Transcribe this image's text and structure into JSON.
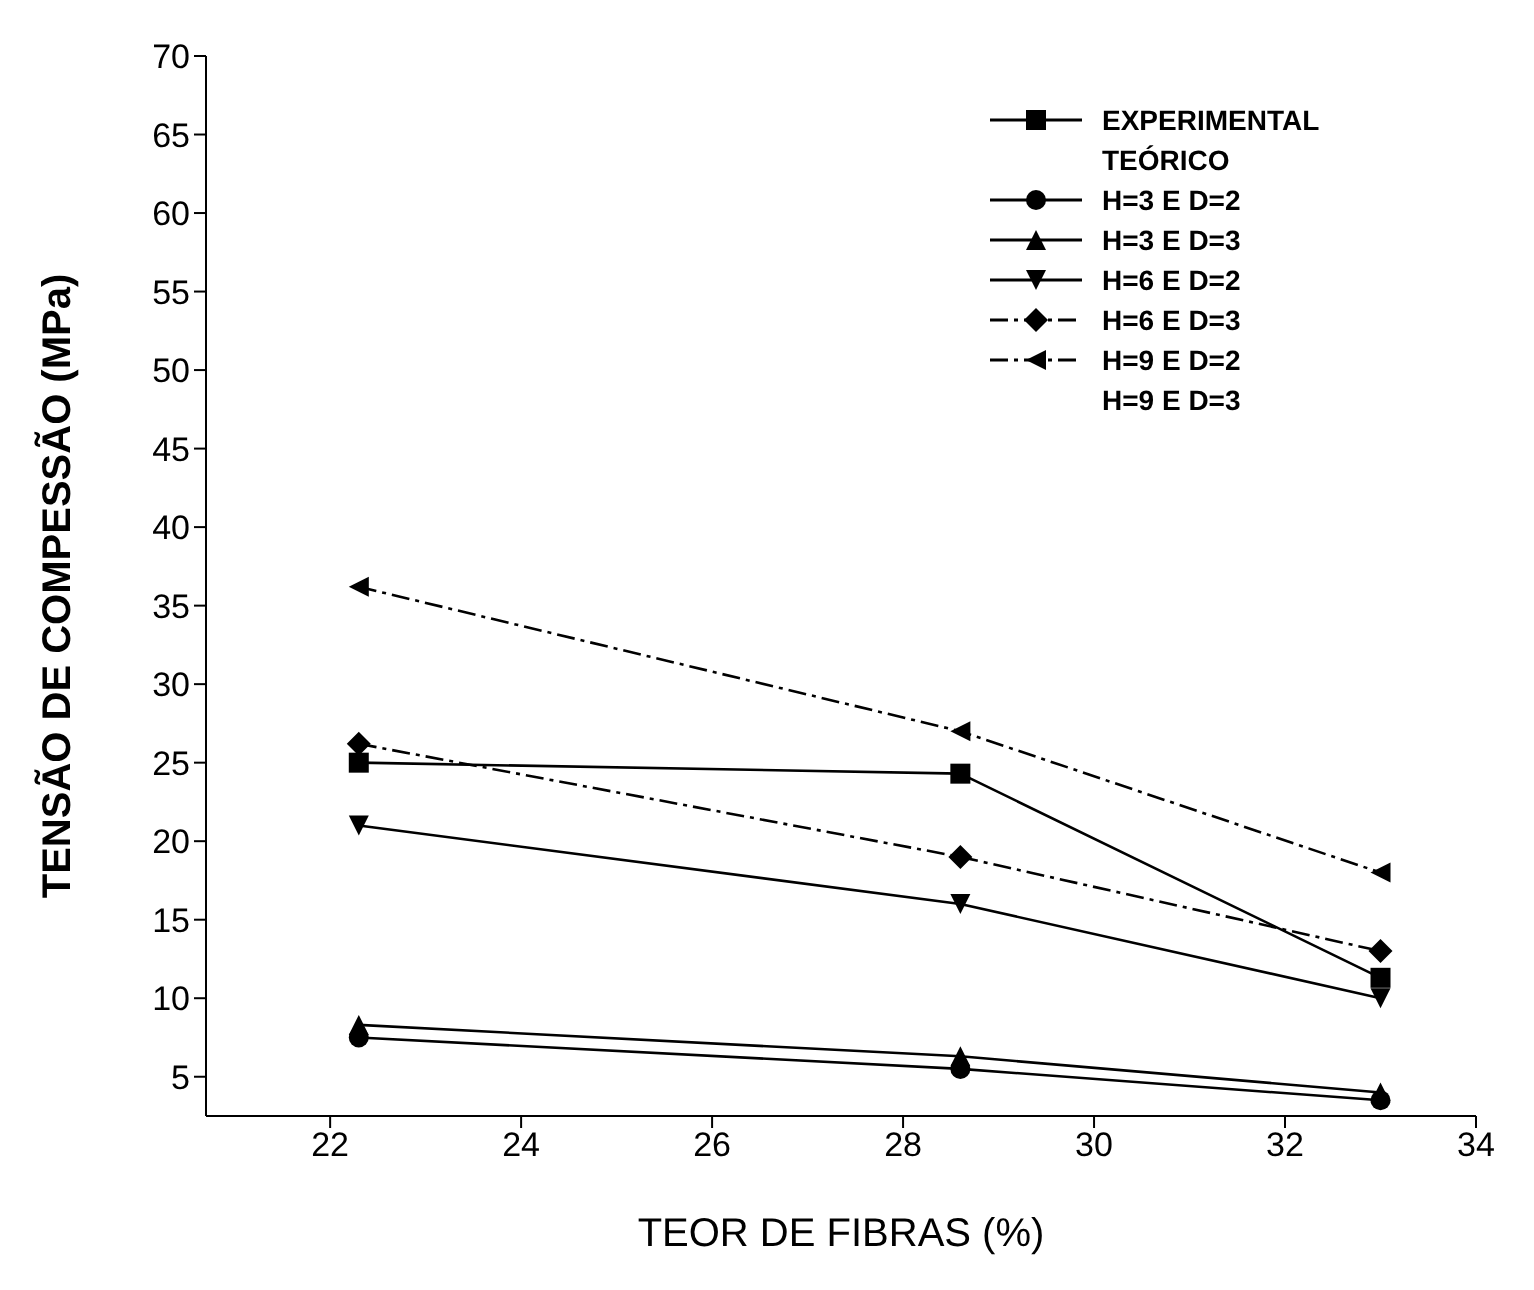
{
  "chart_data": {
    "type": "line",
    "xlabel": "TEOR DE FIBRAS (%)",
    "ylabel": "TENSÃO DE COMPESSÃO (MPa)",
    "x": [
      22.3,
      28.6,
      33.0
    ],
    "xlim": [
      20.7,
      34
    ],
    "xticks": [
      22,
      24,
      26,
      28,
      30,
      32,
      34
    ],
    "ylim": [
      2.5,
      70
    ],
    "yticks": [
      5,
      10,
      15,
      20,
      25,
      30,
      35,
      40,
      45,
      50,
      55,
      60,
      65,
      70
    ],
    "grid": false,
    "legend": "top right",
    "annotations": [
      "TEÓRICO",
      "H=9 E D=3"
    ],
    "series": [
      {
        "name": "EXPERIMENTAL",
        "color": "#000000",
        "marker": "square",
        "line_style": "solid",
        "values": [
          25,
          24.3,
          11.3
        ]
      },
      {
        "name": "H=3 E D=2",
        "color": "#000000",
        "marker": "circle",
        "line_style": "solid",
        "values": [
          7.5,
          5.5,
          3.5
        ]
      },
      {
        "name": "H=3 E D=3",
        "color": "#000000",
        "marker": "triangle",
        "line_style": "solid",
        "values": [
          8.3,
          6.3,
          4.0
        ]
      },
      {
        "name": "H=6 E D=2",
        "color": "#000000",
        "marker": "triangle-down",
        "line_style": "solid",
        "values": [
          21,
          16,
          10
        ]
      },
      {
        "name": "H=6 E D=3",
        "color": "#000000",
        "marker": "diamond",
        "line_style": "dashed",
        "values": [
          26.2,
          19,
          13
        ]
      },
      {
        "name": "H=9 E D=2",
        "color": "#000000",
        "marker": "triangle-left",
        "line_style": "dashed",
        "values": [
          36.2,
          27,
          18
        ]
      }
    ]
  }
}
